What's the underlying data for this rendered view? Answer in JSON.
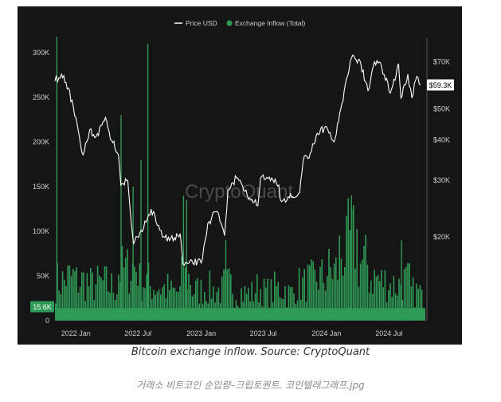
{
  "chart_data": {
    "type": "bar",
    "title": "",
    "watermark": "CryptoQuant",
    "legend": {
      "placement": "top-center",
      "items": [
        "Price USD",
        "Exchange Inflow (Total)"
      ]
    },
    "x_ticks": [
      "2022 Jan",
      "2022 Jul",
      "2023 Jan",
      "2023 Jul",
      "2024 Jan",
      "2024 Jul"
    ],
    "y_left": {
      "label": "",
      "ticks": [
        "300K",
        "250K",
        "200K",
        "150K",
        "100K",
        "50K",
        "0"
      ],
      "ylim": [
        0,
        300000
      ]
    },
    "y_right": {
      "label": "",
      "scale": "log",
      "ticks": [
        "$70K",
        "$50K",
        "$40K",
        "$30K",
        "$20K"
      ]
    },
    "last_values": {
      "price": "$59.3K",
      "inflow": "15.6K"
    },
    "colors": {
      "price": "#ffffff",
      "inflow": "#2f9a55",
      "background": "#151515",
      "axis_text": "#cfcfcf"
    },
    "series": [
      {
        "name": "Price USD",
        "kind": "line",
        "axis": "right",
        "x": [
          "2021-11-01",
          "2021-11-20",
          "2021-12-10",
          "2022-01-01",
          "2022-01-22",
          "2022-02-10",
          "2022-03-01",
          "2022-03-28",
          "2022-04-15",
          "2022-05-05",
          "2022-05-12",
          "2022-06-01",
          "2022-06-18",
          "2022-07-10",
          "2022-08-01",
          "2022-08-15",
          "2022-09-10",
          "2022-10-01",
          "2022-11-01",
          "2022-11-09",
          "2022-12-01",
          "2023-01-01",
          "2023-01-20",
          "2023-02-15",
          "2023-03-10",
          "2023-03-20",
          "2023-04-14",
          "2023-05-15",
          "2023-06-15",
          "2023-06-23",
          "2023-07-15",
          "2023-08-15",
          "2023-08-20",
          "2023-09-15",
          "2023-10-15",
          "2023-10-25",
          "2023-11-15",
          "2023-12-05",
          "2024-01-01",
          "2024-01-23",
          "2024-02-15",
          "2024-02-28",
          "2024-03-14",
          "2024-04-10",
          "2024-05-01",
          "2024-05-20",
          "2024-06-10",
          "2024-07-05",
          "2024-07-29",
          "2024-08-05",
          "2024-08-25",
          "2024-09-06",
          "2024-09-20",
          "2024-10-01"
        ],
        "values": [
          61000,
          64000,
          58000,
          47000,
          36000,
          43000,
          41000,
          47000,
          40000,
          36000,
          29000,
          30000,
          19000,
          21000,
          23500,
          24000,
          20000,
          19500,
          20500,
          16500,
          17000,
          16600,
          22000,
          24000,
          20200,
          28000,
          30500,
          27000,
          25000,
          30500,
          30400,
          29000,
          26000,
          26500,
          27500,
          34500,
          36500,
          42000,
          44000,
          39500,
          52000,
          62000,
          72000,
          69000,
          57000,
          70000,
          67000,
          56000,
          69000,
          54000,
          64000,
          54000,
          63000,
          59300
        ]
      },
      {
        "name": "Exchange Inflow (Total)",
        "kind": "bar",
        "axis": "left",
        "monthly_typical": [
          [
            "2021-11",
            55000
          ],
          [
            "2021-12",
            60000
          ],
          [
            "2022-01",
            55000
          ],
          [
            "2022-02",
            50000
          ],
          [
            "2022-03",
            52000
          ],
          [
            "2022-04",
            48000
          ],
          [
            "2022-05",
            70000
          ],
          [
            "2022-06",
            75000
          ],
          [
            "2022-07",
            55000
          ],
          [
            "2022-08",
            48000
          ],
          [
            "2022-09",
            45000
          ],
          [
            "2022-10",
            40000
          ],
          [
            "2022-11",
            60000
          ],
          [
            "2022-12",
            42000
          ],
          [
            "2023-01",
            45000
          ],
          [
            "2023-02",
            42000
          ],
          [
            "2023-03",
            50000
          ],
          [
            "2023-04",
            40000
          ],
          [
            "2023-05",
            38000
          ],
          [
            "2023-06",
            45000
          ],
          [
            "2023-07",
            40000
          ],
          [
            "2023-08",
            45000
          ],
          [
            "2023-09",
            38000
          ],
          [
            "2023-10",
            50000
          ],
          [
            "2023-11",
            55000
          ],
          [
            "2023-12",
            60000
          ],
          [
            "2024-01",
            70000
          ],
          [
            "2024-02",
            95000
          ],
          [
            "2024-03",
            110000
          ],
          [
            "2024-04",
            80000
          ],
          [
            "2024-05",
            60000
          ],
          [
            "2024-06",
            55000
          ],
          [
            "2024-07",
            50000
          ],
          [
            "2024-08",
            55000
          ],
          [
            "2024-09",
            40000
          ],
          [
            "2024-10",
            30000
          ]
        ],
        "spikes": [
          [
            "2021-11-05",
            320000
          ],
          [
            "2022-05-11",
            230000
          ],
          [
            "2022-06-15",
            150000
          ],
          [
            "2022-07-08",
            180000
          ],
          [
            "2022-07-28",
            310000
          ],
          [
            "2022-11-09",
            140000
          ],
          [
            "2022-11-18",
            135000
          ],
          [
            "2023-03-12",
            90000
          ],
          [
            "2024-03-12",
            140000
          ],
          [
            "2024-08-05",
            90000
          ]
        ]
      }
    ]
  },
  "caption": "Bitcoin exchange inflow. Source: CryptoQuant",
  "filename": "거래소 비트코인 순입량–크립토퀀트. 코인텔레그래프.jpg"
}
